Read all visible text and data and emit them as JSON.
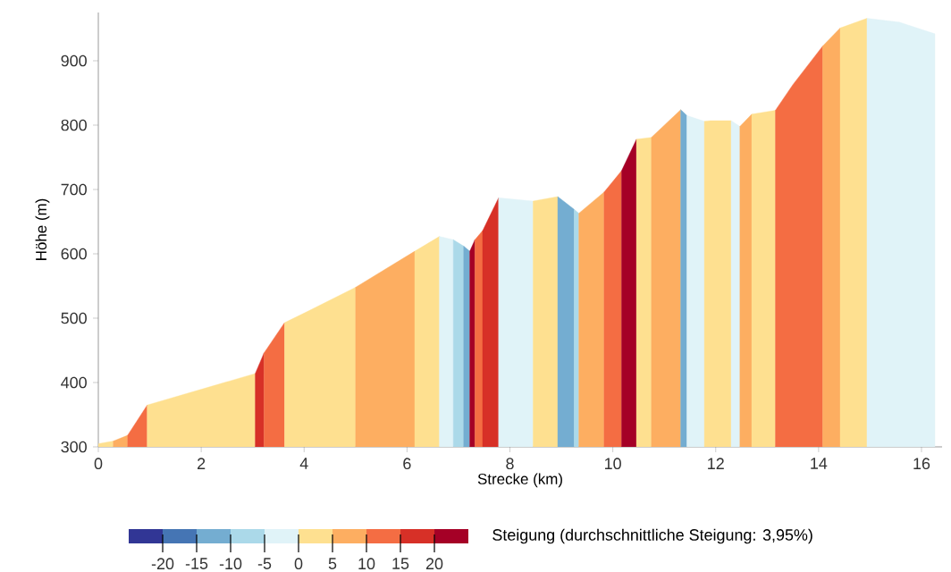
{
  "chart_data": {
    "type": "area",
    "xlabel": "Strecke (km)",
    "ylabel": "Höhe (m)",
    "clabel": "Steigung (durchschnittliche Steigung: 3,95%)",
    "series": [
      {
        "color": "#fee090",
        "x": [
          0,
          0.29
        ],
        "values": [
          305,
          309
        ]
      },
      {
        "color": "#fdae61",
        "x": [
          0.29,
          0.57
        ],
        "values": [
          309,
          318
        ]
      },
      {
        "color": "#f46d43",
        "x": [
          0.57,
          0.95
        ],
        "values": [
          318,
          365
        ]
      },
      {
        "color": "#fee090",
        "x": [
          0.95,
          3.05
        ],
        "values": [
          365,
          414
        ]
      },
      {
        "color": "#d73027",
        "x": [
          3.05,
          3.22
        ],
        "values": [
          414,
          446
        ]
      },
      {
        "color": "#f46d43",
        "x": [
          3.22,
          3.62
        ],
        "values": [
          446,
          493
        ]
      },
      {
        "color": "#fee090",
        "x": [
          3.62,
          4.08,
          5.0
        ],
        "values": [
          493,
          511,
          548
        ]
      },
      {
        "color": "#fdae61",
        "x": [
          5.0,
          6.15
        ],
        "values": [
          548,
          604
        ]
      },
      {
        "color": "#fee090",
        "x": [
          6.15,
          6.63
        ],
        "values": [
          604,
          627
        ]
      },
      {
        "color": "#e0f3f8",
        "x": [
          6.63,
          6.9
        ],
        "values": [
          627,
          622
        ]
      },
      {
        "color": "#abd9e9",
        "x": [
          6.9,
          7.1
        ],
        "values": [
          622,
          612
        ]
      },
      {
        "color": "#74add1",
        "x": [
          7.1,
          7.22
        ],
        "values": [
          612,
          604
        ]
      },
      {
        "color": "#a50026",
        "x": [
          7.22,
          7.32
        ],
        "values": [
          604,
          622
        ]
      },
      {
        "color": "#f46d43",
        "x": [
          7.32,
          7.47
        ],
        "values": [
          622,
          636
        ]
      },
      {
        "color": "#d73027",
        "x": [
          7.47,
          7.78
        ],
        "values": [
          636,
          687
        ]
      },
      {
        "color": "#e0f3f8",
        "x": [
          7.78,
          8.45
        ],
        "values": [
          687,
          682
        ]
      },
      {
        "color": "#fee090",
        "x": [
          8.45,
          8.93
        ],
        "values": [
          682,
          689
        ]
      },
      {
        "color": "#74add1",
        "x": [
          8.93,
          9.25
        ],
        "values": [
          689,
          669
        ]
      },
      {
        "color": "#abd9e9",
        "x": [
          9.25,
          9.34
        ],
        "values": [
          669,
          663
        ]
      },
      {
        "color": "#fdae61",
        "x": [
          9.34,
          9.83
        ],
        "values": [
          663,
          696
        ]
      },
      {
        "color": "#f46d43",
        "x": [
          9.83,
          10.17
        ],
        "values": [
          696,
          729
        ]
      },
      {
        "color": "#a50026",
        "x": [
          10.17,
          10.46
        ],
        "values": [
          729,
          778
        ]
      },
      {
        "color": "#fee090",
        "x": [
          10.46,
          10.75
        ],
        "values": [
          778,
          781
        ]
      },
      {
        "color": "#fdae61",
        "x": [
          10.75,
          11.32
        ],
        "values": [
          781,
          824
        ]
      },
      {
        "color": "#74add1",
        "x": [
          11.32,
          11.44
        ],
        "values": [
          824,
          815
        ]
      },
      {
        "color": "#e0f3f8",
        "x": [
          11.44,
          11.78
        ],
        "values": [
          815,
          806
        ]
      },
      {
        "color": "#fee090",
        "x": [
          11.78,
          11.9,
          12.3
        ],
        "values": [
          806,
          807,
          807
        ]
      },
      {
        "color": "#e0f3f8",
        "x": [
          12.3,
          12.47
        ],
        "values": [
          807,
          798
        ]
      },
      {
        "color": "#fdae61",
        "x": [
          12.47,
          12.7
        ],
        "values": [
          798,
          817
        ]
      },
      {
        "color": "#fee090",
        "x": [
          12.7,
          13.16
        ],
        "values": [
          817,
          823
        ]
      },
      {
        "color": "#f46d43",
        "x": [
          13.16,
          13.5,
          14.08
        ],
        "values": [
          823,
          863,
          923
        ]
      },
      {
        "color": "#fdae61",
        "x": [
          14.08,
          14.42
        ],
        "values": [
          923,
          951
        ]
      },
      {
        "color": "#fee090",
        "x": [
          14.42,
          14.94
        ],
        "values": [
          951,
          966
        ]
      },
      {
        "color": "#e0f3f8",
        "x": [
          14.94,
          15.57,
          16.26
        ],
        "values": [
          966,
          960,
          942
        ]
      }
    ],
    "xlim": [
      0,
      16.4
    ],
    "ylim": [
      300,
      975
    ],
    "xticks": [
      0,
      2,
      4,
      6,
      8,
      10,
      12,
      14,
      16
    ],
    "yticks": [
      300,
      400,
      500,
      600,
      700,
      800,
      900
    ],
    "clim": [
      -25,
      25
    ],
    "cticks": [
      -20,
      -15,
      -10,
      -5,
      0,
      5,
      10,
      15,
      20
    ]
  }
}
